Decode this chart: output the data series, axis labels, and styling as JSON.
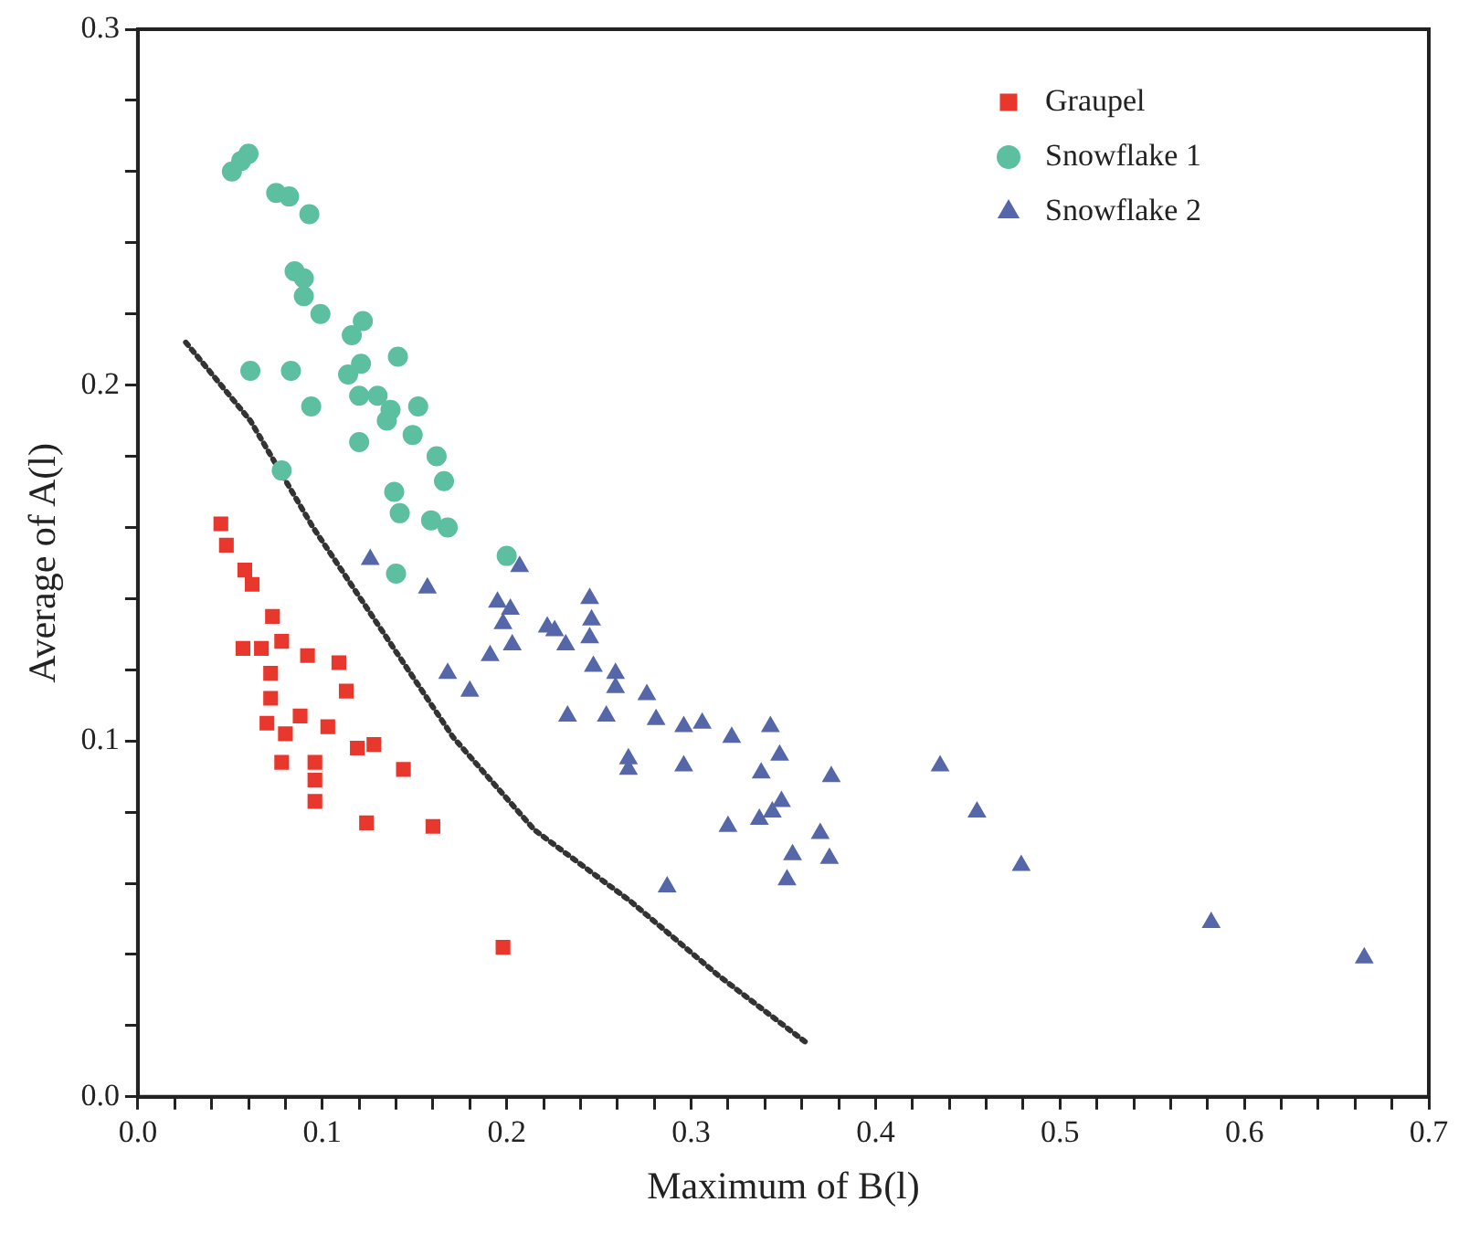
{
  "chart_data": {
    "type": "scatter",
    "xlabel": "Maximum of B(l)",
    "ylabel": "Average of A(l)",
    "xlim": [
      0,
      0.7
    ],
    "ylim": [
      0,
      0.3
    ],
    "xticks": [
      {
        "value": 0,
        "label": "0.0"
      },
      {
        "value": 0.02,
        "label": null
      },
      {
        "value": 0.04,
        "label": null
      },
      {
        "value": 0.06,
        "label": null
      },
      {
        "value": 0.08,
        "label": null
      },
      {
        "value": 0.1,
        "label": "0.1"
      },
      {
        "value": 0.12,
        "label": null
      },
      {
        "value": 0.14,
        "label": null
      },
      {
        "value": 0.16,
        "label": null
      },
      {
        "value": 0.18,
        "label": null
      },
      {
        "value": 0.2,
        "label": "0.2"
      },
      {
        "value": 0.22,
        "label": null
      },
      {
        "value": 0.24,
        "label": null
      },
      {
        "value": 0.26,
        "label": null
      },
      {
        "value": 0.28,
        "label": null
      },
      {
        "value": 0.3,
        "label": "0.3"
      },
      {
        "value": 0.32,
        "label": null
      },
      {
        "value": 0.34,
        "label": null
      },
      {
        "value": 0.36,
        "label": null
      },
      {
        "value": 0.38,
        "label": null
      },
      {
        "value": 0.4,
        "label": "0.4"
      },
      {
        "value": 0.42,
        "label": null
      },
      {
        "value": 0.44,
        "label": null
      },
      {
        "value": 0.46,
        "label": null
      },
      {
        "value": 0.48,
        "label": null
      },
      {
        "value": 0.5,
        "label": "0.5"
      },
      {
        "value": 0.52,
        "label": null
      },
      {
        "value": 0.54,
        "label": null
      },
      {
        "value": 0.56,
        "label": null
      },
      {
        "value": 0.58,
        "label": null
      },
      {
        "value": 0.6,
        "label": "0.6"
      },
      {
        "value": 0.62,
        "label": null
      },
      {
        "value": 0.64,
        "label": null
      },
      {
        "value": 0.66,
        "label": null
      },
      {
        "value": 0.68,
        "label": null
      },
      {
        "value": 0.7,
        "label": "0.7"
      }
    ],
    "yticks": [
      {
        "value": 0,
        "label": "0.0"
      },
      {
        "value": 0.02,
        "label": null
      },
      {
        "value": 0.04,
        "label": null
      },
      {
        "value": 0.06,
        "label": null
      },
      {
        "value": 0.08,
        "label": null
      },
      {
        "value": 0.1,
        "label": "0.1"
      },
      {
        "value": 0.12,
        "label": null
      },
      {
        "value": 0.14,
        "label": null
      },
      {
        "value": 0.16,
        "label": null
      },
      {
        "value": 0.18,
        "label": null
      },
      {
        "value": 0.2,
        "label": "0.2"
      },
      {
        "value": 0.22,
        "label": null
      },
      {
        "value": 0.24,
        "label": null
      },
      {
        "value": 0.26,
        "label": null
      },
      {
        "value": 0.28,
        "label": null
      },
      {
        "value": 0.3,
        "label": "0.3"
      }
    ],
    "grid": false,
    "legend": "top right",
    "series": [
      {
        "name": "Graupel",
        "color": "#e8372c",
        "marker": "square",
        "x": [
          0.045,
          0.048,
          0.058,
          0.062,
          0.073,
          0.057,
          0.067,
          0.078,
          0.092,
          0.109,
          0.113,
          0.072,
          0.072,
          0.07,
          0.088,
          0.103,
          0.08,
          0.078,
          0.096,
          0.119,
          0.128,
          0.096,
          0.096,
          0.144,
          0.124,
          0.16,
          0.198
        ],
        "values": [
          0.161,
          0.155,
          0.148,
          0.144,
          0.135,
          0.126,
          0.126,
          0.128,
          0.124,
          0.122,
          0.114,
          0.119,
          0.112,
          0.105,
          0.107,
          0.104,
          0.102,
          0.094,
          0.094,
          0.098,
          0.099,
          0.089,
          0.083,
          0.092,
          0.077,
          0.076,
          0.042
        ]
      },
      {
        "name": "Snowflake 1",
        "color": "#5cbfa0",
        "marker": "circle",
        "x": [
          0.051,
          0.06,
          0.056,
          0.075,
          0.082,
          0.093,
          0.085,
          0.09,
          0.09,
          0.099,
          0.122,
          0.116,
          0.061,
          0.083,
          0.141,
          0.114,
          0.121,
          0.12,
          0.13,
          0.137,
          0.135,
          0.152,
          0.094,
          0.12,
          0.149,
          0.162,
          0.166,
          0.139,
          0.142,
          0.078,
          0.159,
          0.168,
          0.14,
          0.2
        ],
        "values": [
          0.26,
          0.265,
          0.263,
          0.254,
          0.253,
          0.248,
          0.232,
          0.23,
          0.225,
          0.22,
          0.218,
          0.214,
          0.204,
          0.204,
          0.208,
          0.203,
          0.206,
          0.197,
          0.197,
          0.193,
          0.19,
          0.194,
          0.194,
          0.184,
          0.186,
          0.18,
          0.173,
          0.17,
          0.164,
          0.176,
          0.162,
          0.16,
          0.147,
          0.152
        ]
      },
      {
        "name": "Snowflake 2",
        "color": "#5567a8",
        "marker": "triangle",
        "x": [
          0.126,
          0.157,
          0.207,
          0.195,
          0.202,
          0.198,
          0.203,
          0.191,
          0.168,
          0.18,
          0.222,
          0.226,
          0.232,
          0.245,
          0.246,
          0.245,
          0.247,
          0.259,
          0.259,
          0.276,
          0.233,
          0.254,
          0.281,
          0.296,
          0.306,
          0.322,
          0.343,
          0.348,
          0.266,
          0.266,
          0.296,
          0.338,
          0.376,
          0.349,
          0.344,
          0.337,
          0.32,
          0.37,
          0.355,
          0.375,
          0.352,
          0.287,
          0.435,
          0.455,
          0.479,
          0.582,
          0.665
        ],
        "values": [
          0.151,
          0.143,
          0.149,
          0.139,
          0.137,
          0.133,
          0.127,
          0.124,
          0.119,
          0.114,
          0.132,
          0.131,
          0.127,
          0.14,
          0.134,
          0.129,
          0.121,
          0.119,
          0.115,
          0.113,
          0.107,
          0.107,
          0.106,
          0.104,
          0.105,
          0.101,
          0.104,
          0.096,
          0.095,
          0.092,
          0.093,
          0.091,
          0.09,
          0.083,
          0.08,
          0.078,
          0.076,
          0.074,
          0.068,
          0.067,
          0.061,
          0.059,
          0.093,
          0.08,
          0.065,
          0.049,
          0.039
        ]
      },
      {
        "type": "line",
        "color": "#333333",
        "marker": "none",
        "line_style": "dotted",
        "x": [
          0.026,
          0.061,
          0.095,
          0.171,
          0.215,
          0.267,
          0.315,
          0.363
        ],
        "values": [
          0.212,
          0.19,
          0.16,
          0.101,
          0.075,
          0.055,
          0.034,
          0.015
        ]
      }
    ]
  }
}
